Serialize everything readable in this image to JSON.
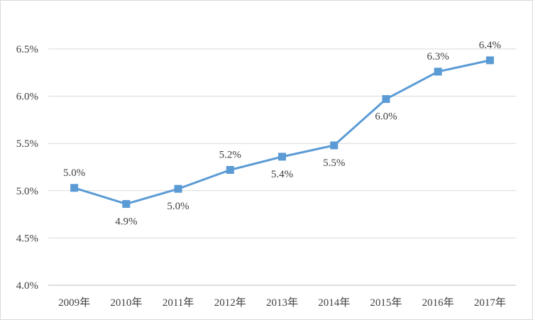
{
  "chart_data": {
    "type": "line",
    "title": "",
    "xlabel": "",
    "ylabel": "",
    "categories": [
      "2009年",
      "2010年",
      "2011年",
      "2012年",
      "2013年",
      "2014年",
      "2015年",
      "2016年",
      "2017年"
    ],
    "series": [
      {
        "values": [
          5.03,
          4.86,
          5.02,
          5.22,
          5.36,
          5.48,
          5.97,
          6.26,
          6.38
        ],
        "data_labels": [
          "5.0%",
          "4.9%",
          "5.0%",
          "5.2%",
          "5.4%",
          "5.5%",
          "6.0%",
          "6.3%",
          "6.4%"
        ],
        "label_positions": [
          "above",
          "below",
          "below",
          "above",
          "below",
          "below",
          "below",
          "above",
          "above"
        ],
        "color": "#5b9bd5",
        "marker": "square"
      }
    ],
    "ylim": [
      4.0,
      6.5
    ],
    "yticks": [
      4.0,
      4.5,
      5.0,
      5.5,
      6.0,
      6.5
    ],
    "ytick_labels": [
      "4.0%",
      "4.5%",
      "5.0%",
      "5.5%",
      "6.0%",
      "6.5%"
    ],
    "grid": true,
    "gridline_color": "#d9d9d9",
    "legend": "none"
  }
}
